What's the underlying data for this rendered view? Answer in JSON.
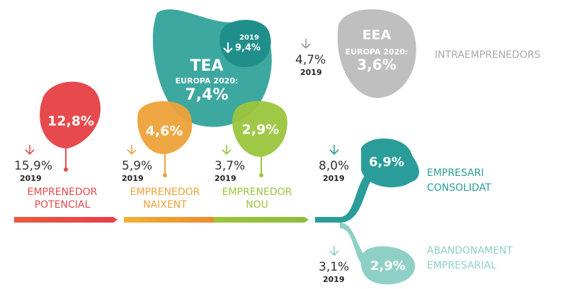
{
  "tea": {
    "label": "TEA",
    "sublabel": "EUROPA 2020:",
    "value": "7,4%",
    "year": "2019",
    "previous": "9,4%"
  },
  "eea": {
    "label": "EEA",
    "sublabel": "EUROPA 2020:",
    "value": "3,6%",
    "previous": "4,7%",
    "year": "2019",
    "name": "INTRAEMPRENEDORS"
  },
  "stages": [
    {
      "value": "12,8%",
      "previous": "15,9%",
      "year": "2019",
      "label": [
        "EMPRENEDOR",
        "POTENCIAL"
      ]
    },
    {
      "value": "4,6%",
      "previous": "5,9%",
      "year": "2019",
      "label": [
        "EMPRENEDOR",
        "NAIXENT"
      ]
    },
    {
      "value": "2,9%",
      "previous": "3,7%",
      "year": "2019",
      "label": [
        "EMPRENEDOR",
        "NOU"
      ]
    },
    {
      "value": "6,9%",
      "previous": "8,0%",
      "year": "2019",
      "label": [
        "EMPRESARI",
        "CONSOLIDAT"
      ]
    },
    {
      "value": "2,9%",
      "previous": "3,1%",
      "year": "2019",
      "label": [
        "ABANDONAMENT",
        "EMPRESARIAL"
      ]
    }
  ]
}
